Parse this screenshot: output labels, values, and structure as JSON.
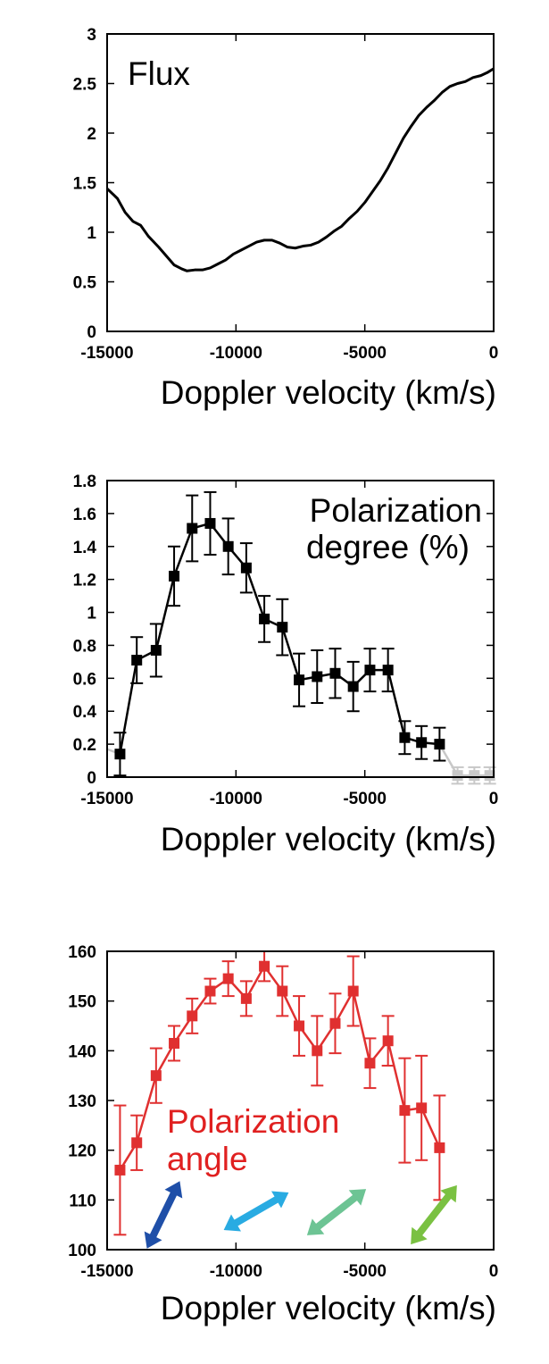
{
  "chart_data": [
    {
      "type": "line",
      "title": "Flux",
      "xlabel": "Doppler velocity (km/s)",
      "ylabel": "",
      "xlim": [
        -15000,
        0
      ],
      "ylim": [
        0,
        3
      ],
      "xticks": [
        "-15000",
        "-10000",
        "-5000",
        "0"
      ],
      "yticks": [
        "0",
        "0.5",
        "1",
        "1.5",
        "2",
        "2.5",
        "3"
      ],
      "colors": {
        "line": "#000000",
        "title": "#000000"
      },
      "series": [
        {
          "x": [
            -15000,
            -14600,
            -14300,
            -14000,
            -13700,
            -13400,
            -13000,
            -12700,
            -12400,
            -12100,
            -11900,
            -11600,
            -11300,
            -11000,
            -10700,
            -10400,
            -10100,
            -9800,
            -9500,
            -9200,
            -8900,
            -8600,
            -8300,
            -8000,
            -7700,
            -7400,
            -7100,
            -6800,
            -6500,
            -6200,
            -5900,
            -5600,
            -5300,
            -5000,
            -4700,
            -4400,
            -4100,
            -3800,
            -3500,
            -3200,
            -2900,
            -2600,
            -2300,
            -2000,
            -1700,
            -1400,
            -1100,
            -800,
            -500,
            -250,
            0
          ],
          "y": [
            1.44,
            1.34,
            1.2,
            1.11,
            1.07,
            0.96,
            0.85,
            0.76,
            0.67,
            0.63,
            0.61,
            0.62,
            0.62,
            0.64,
            0.68,
            0.72,
            0.78,
            0.82,
            0.86,
            0.9,
            0.92,
            0.92,
            0.89,
            0.85,
            0.84,
            0.86,
            0.87,
            0.9,
            0.95,
            1.01,
            1.06,
            1.14,
            1.21,
            1.3,
            1.41,
            1.52,
            1.65,
            1.8,
            1.95,
            2.07,
            2.18,
            2.26,
            2.33,
            2.41,
            2.47,
            2.5,
            2.52,
            2.56,
            2.58,
            2.61,
            2.65
          ]
        }
      ]
    },
    {
      "type": "line",
      "title": "Polarization degree (%)",
      "title_lines": [
        "Polarization",
        "degree (%)"
      ],
      "xlabel": "Doppler velocity (km/s)",
      "ylabel": "",
      "xlim": [
        -15000,
        0
      ],
      "ylim": [
        0,
        1.8
      ],
      "xticks": [
        "-15000",
        "-10000",
        "-5000",
        "0"
      ],
      "yticks": [
        "0",
        "0.2",
        "0.4",
        "0.6",
        "0.8",
        "1",
        "1.2",
        "1.4",
        "1.6",
        "1.8"
      ],
      "colors": {
        "main": "#000000",
        "faint": "#c8c8c8"
      },
      "series": [
        {
          "x": [
            -14500,
            -13850,
            -13100,
            -12400,
            -11700,
            -11000,
            -10300,
            -9600,
            -8900,
            -8200,
            -7550,
            -6850,
            -6150,
            -5450,
            -4800,
            -4100,
            -3450,
            -2800,
            -2100
          ],
          "y": [
            0.14,
            0.71,
            0.77,
            1.22,
            1.51,
            1.54,
            1.4,
            1.27,
            0.96,
            0.91,
            0.59,
            0.61,
            0.63,
            0.55,
            0.65,
            0.65,
            0.24,
            0.21,
            0.2
          ],
          "err": [
            0.13,
            0.14,
            0.16,
            0.18,
            0.2,
            0.19,
            0.17,
            0.15,
            0.14,
            0.17,
            0.16,
            0.16,
            0.15,
            0.15,
            0.13,
            0.13,
            0.1,
            0.1,
            0.1
          ]
        },
        {
          "x": [
            -1400,
            -750,
            -150
          ],
          "y": [
            0.01,
            0.01,
            0.01
          ],
          "err": [
            0.05,
            0.05,
            0.05
          ]
        }
      ]
    },
    {
      "type": "line",
      "title": "Polarization angle",
      "title_lines": [
        "Polarization",
        "angle"
      ],
      "xlabel": "Doppler velocity (km/s)",
      "ylabel": "",
      "xlim": [
        -15000,
        0
      ],
      "ylim": [
        100,
        160
      ],
      "xticks": [
        "-15000",
        "-10000",
        "-5000",
        "0"
      ],
      "yticks": [
        "100",
        "110",
        "120",
        "130",
        "140",
        "150",
        "160"
      ],
      "colors": {
        "line": "#e03030",
        "title": "#e02020"
      },
      "series": [
        {
          "x": [
            -14500,
            -13850,
            -13100,
            -12400,
            -11700,
            -11000,
            -10300,
            -9600,
            -8900,
            -8200,
            -7550,
            -6850,
            -6150,
            -5450,
            -4800,
            -4100,
            -3450,
            -2800,
            -2100
          ],
          "y": [
            116,
            121.5,
            135,
            141.5,
            147,
            152,
            154.5,
            150.5,
            157,
            152,
            145,
            140,
            145.5,
            152,
            137.5,
            142,
            128,
            128.5,
            120.5
          ],
          "err": [
            13,
            5.5,
            5.5,
            3.5,
            3.5,
            2.5,
            3.5,
            3.5,
            3,
            5,
            6,
            7,
            6,
            7,
            5,
            5,
            10.5,
            10.5,
            10.5
          ]
        }
      ],
      "arrows": [
        {
          "color": "#1f4fa8",
          "angle_deg": 116
        },
        {
          "color": "#29abe2",
          "angle_deg": 150
        },
        {
          "color": "#6dc494",
          "angle_deg": 142
        },
        {
          "color": "#7ac142",
          "angle_deg": 128
        }
      ]
    }
  ]
}
